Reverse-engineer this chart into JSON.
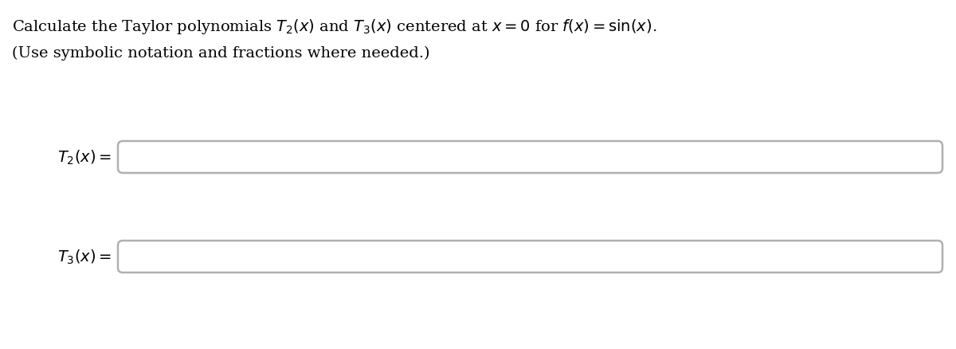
{
  "title_line1": "Calculate the Taylor polynomials $T_2(x)$ and $T_3(x)$ centered at $x = 0$ for $f(x) = \\sin(x)$.",
  "title_line2": "(Use symbolic notation and fractions where needed.)",
  "label1": "$T_2(x) =$",
  "label2": "$T_3(x) =$",
  "bg_color": "#ffffff",
  "box_face_color": "#ffffff",
  "box_edge_color": "#b0b0b0",
  "text_color": "#000000",
  "title_fontsize": 14,
  "label_fontsize": 14,
  "fig_width": 12.0,
  "fig_height": 4.39,
  "dpi": 100
}
